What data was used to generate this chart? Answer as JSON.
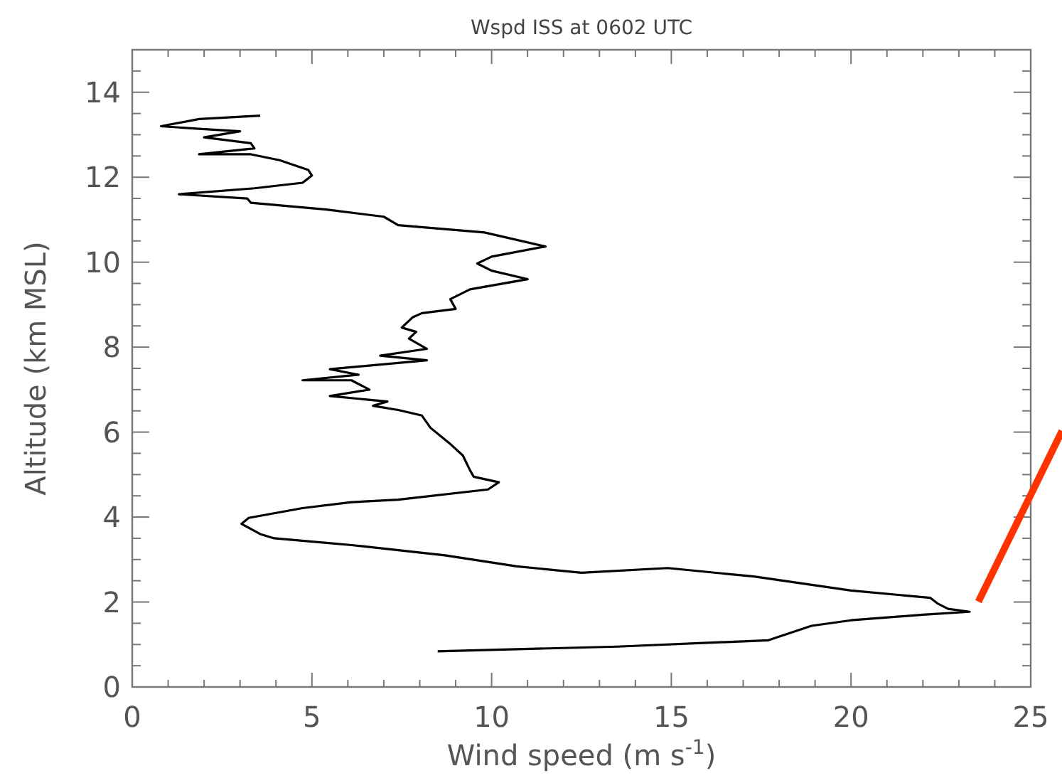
{
  "chart_data": {
    "type": "line",
    "title": "Wspd ISS at 0602 UTC",
    "xlabel": "Wind speed (m s$^{-1}$)",
    "ylabel": "Altitude (km MSL)",
    "xlim": [
      0,
      25
    ],
    "ylim": [
      0,
      15
    ],
    "xticks": [
      0,
      {
        "value": 1,
        "label": null
      },
      {
        "value": 2,
        "label": null
      },
      {
        "value": 3,
        "label": null
      },
      {
        "value": 4,
        "label": null
      },
      5,
      {
        "value": 6,
        "label": null
      },
      {
        "value": 7,
        "label": null
      },
      {
        "value": 8,
        "label": null
      },
      {
        "value": 9,
        "label": null
      },
      10,
      {
        "value": 11,
        "label": null
      },
      {
        "value": 12,
        "label": null
      },
      {
        "value": 13,
        "label": null
      },
      {
        "value": 14,
        "label": null
      },
      15,
      {
        "value": 16,
        "label": null
      },
      {
        "value": 17,
        "label": null
      },
      {
        "value": 18,
        "label": null
      },
      {
        "value": 19,
        "label": null
      },
      20,
      {
        "value": 21,
        "label": null
      },
      {
        "value": 22,
        "label": null
      },
      {
        "value": 23,
        "label": null
      },
      {
        "value": 24,
        "label": null
      },
      25
    ],
    "yticks": [
      0,
      {
        "value": 0.5,
        "label": null
      },
      {
        "value": 1,
        "label": null
      },
      {
        "value": 1.5,
        "label": null
      },
      2,
      {
        "value": 2.5,
        "label": null
      },
      {
        "value": 3,
        "label": null
      },
      {
        "value": 3.5,
        "label": null
      },
      4,
      {
        "value": 4.5,
        "label": null
      },
      {
        "value": 5,
        "label": null
      },
      {
        "value": 5.5,
        "label": null
      },
      6,
      {
        "value": 6.5,
        "label": null
      },
      {
        "value": 7,
        "label": null
      },
      {
        "value": 7.5,
        "label": null
      },
      8,
      {
        "value": 8.5,
        "label": null
      },
      {
        "value": 9,
        "label": null
      },
      {
        "value": 9.5,
        "label": null
      },
      10,
      {
        "value": 10.5,
        "label": null
      },
      {
        "value": 11,
        "label": null
      },
      {
        "value": 11.5,
        "label": null
      },
      12,
      {
        "value": 12.5,
        "label": null
      },
      {
        "value": 13,
        "label": null
      },
      {
        "value": 13.5,
        "label": null
      },
      14,
      {
        "value": 14.5,
        "label": null
      },
      {
        "value": 15,
        "label": null
      }
    ],
    "grid": false,
    "marker": "none",
    "line_style": "solid",
    "series": [
      {
        "color": "#000000",
        "x": [
          8.5,
          13.5,
          17.7,
          18.9,
          20,
          22,
          23.3,
          22.7,
          22.4,
          22.2,
          20,
          17.3,
          16.1,
          14.9,
          12.5,
          10.7,
          8.7,
          6.1,
          3.95,
          3.56,
          3.04,
          3.24,
          4.74,
          6.1,
          7.4,
          9.9,
          10.2,
          9.5,
          9.4,
          9.2,
          8.85,
          8.3,
          8.06,
          7.4,
          6.7,
          7.1,
          5.5,
          6.6,
          6.1,
          4.74,
          6.3,
          5.5,
          8.2,
          6.9,
          8.2,
          7.7,
          7.9,
          7.5,
          7.8,
          8.06,
          9,
          8.85,
          9.4,
          11,
          10,
          9.6,
          10,
          11.5,
          9.8,
          7.4,
          7,
          5.4,
          3.3,
          3.2,
          1.3,
          3.4,
          4.74,
          5,
          4.9,
          4.1,
          3.3,
          1.86,
          3.4,
          3.3,
          2,
          3,
          1.86,
          0.8,
          1.86,
          3.56
        ],
        "values": [
          0.84,
          0.95,
          1.1,
          1.44,
          1.57,
          1.7,
          1.77,
          1.84,
          1.97,
          2.1,
          2.27,
          2.6,
          2.7,
          2.8,
          2.69,
          2.84,
          3.1,
          3.34,
          3.5,
          3.6,
          3.84,
          3.98,
          4.21,
          4.35,
          4.41,
          4.65,
          4.82,
          4.95,
          5.1,
          5.45,
          5.72,
          6.1,
          6.39,
          6.52,
          6.62,
          6.72,
          6.85,
          7,
          7.22,
          7.22,
          7.35,
          7.48,
          7.69,
          7.8,
          7.96,
          8.2,
          8.36,
          8.46,
          8.7,
          8.8,
          8.9,
          9.13,
          9.36,
          9.6,
          9.8,
          9.97,
          10.13,
          10.37,
          10.7,
          10.87,
          11.07,
          11.24,
          11.4,
          11.5,
          11.6,
          11.74,
          11.87,
          12.04,
          12.17,
          12.4,
          12.54,
          12.54,
          12.68,
          12.8,
          12.94,
          13.08,
          13.14,
          13.2,
          13.37,
          13.45
        ]
      }
    ]
  }
}
